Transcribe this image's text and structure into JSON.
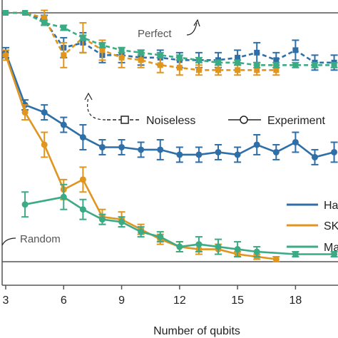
{
  "chart_data": {
    "type": "line",
    "xlabel": "Number of qubits",
    "ylabel": "",
    "xlim": [
      3,
      20.2
    ],
    "ylim": [
      0.0,
      1.0
    ],
    "xticks": [
      3,
      6,
      9,
      12,
      15,
      18
    ],
    "tick_labels": [
      "3",
      "6",
      "9",
      "12",
      "15",
      "18"
    ],
    "reference_lines": [
      {
        "label": "Perfect",
        "y": 1.0
      },
      {
        "label": "Random",
        "y": 0.0
      }
    ],
    "style_legend": [
      {
        "label": "Noiseless",
        "style": "dashed, square markers"
      },
      {
        "label": "Experiment",
        "style": "solid, circle markers"
      }
    ],
    "series_legend": [
      "Ha",
      "SK",
      "Ma"
    ],
    "colors": {
      "Ha": "#2f6fa8",
      "SK": "#e0951f",
      "Ma": "#3bab86",
      "axis": "#555555"
    },
    "series": [
      {
        "name": "Ha",
        "kind": "Experiment",
        "x": [
          3,
          4,
          5,
          6,
          7,
          8,
          9,
          10,
          11,
          12,
          13,
          14,
          15,
          16,
          17,
          18,
          19,
          20
        ],
        "y": [
          0.84,
          0.63,
          0.6,
          0.55,
          0.5,
          0.46,
          0.46,
          0.45,
          0.45,
          0.43,
          0.43,
          0.44,
          0.43,
          0.47,
          0.44,
          0.48,
          0.42,
          0.44
        ],
        "err": [
          0.02,
          0.02,
          0.03,
          0.03,
          0.05,
          0.03,
          0.03,
          0.03,
          0.04,
          0.03,
          0.03,
          0.03,
          0.03,
          0.04,
          0.03,
          0.04,
          0.03,
          0.04
        ]
      },
      {
        "name": "SK",
        "kind": "Experiment",
        "x": [
          3,
          4,
          5,
          6,
          7,
          8,
          9,
          10,
          11,
          12,
          13,
          14,
          15,
          16,
          17
        ],
        "y": [
          0.83,
          0.6,
          0.47,
          0.29,
          0.33,
          0.18,
          0.17,
          0.13,
          0.09,
          0.06,
          0.05,
          0.05,
          0.03,
          0.02,
          0.01
        ],
        "err": [
          0.02,
          0.03,
          0.05,
          0.04,
          0.05,
          0.03,
          0.03,
          0.02,
          0.02,
          0.02,
          0.02,
          0.02,
          0.01,
          0.01,
          0.01
        ]
      },
      {
        "name": "Ma",
        "kind": "Experiment",
        "x": [
          4,
          6,
          7,
          8,
          9,
          10,
          11,
          12,
          13,
          14,
          15,
          16,
          18,
          20
        ],
        "y": [
          0.23,
          0.26,
          0.21,
          0.17,
          0.16,
          0.12,
          0.1,
          0.06,
          0.07,
          0.06,
          0.05,
          0.04,
          0.03,
          0.03
        ],
        "err": [
          0.05,
          0.05,
          0.04,
          0.02,
          0.02,
          0.02,
          0.02,
          0.02,
          0.03,
          0.03,
          0.03,
          0.02,
          0.01,
          0.01
        ]
      },
      {
        "name": "Ha",
        "kind": "Noiseless",
        "x": [
          3,
          4,
          5,
          6,
          7,
          8,
          9,
          10,
          11,
          12,
          13,
          14,
          15,
          16,
          17,
          18,
          19,
          20
        ],
        "y": [
          1.0,
          1.0,
          0.97,
          0.86,
          0.88,
          0.83,
          0.83,
          0.82,
          0.82,
          0.81,
          0.81,
          0.81,
          0.82,
          0.84,
          0.81,
          0.85,
          0.8,
          0.8
        ],
        "err": [
          0.0,
          0.0,
          0.02,
          0.04,
          0.04,
          0.03,
          0.03,
          0.03,
          0.03,
          0.03,
          0.03,
          0.03,
          0.03,
          0.04,
          0.03,
          0.04,
          0.03,
          0.03
        ]
      },
      {
        "name": "SK",
        "kind": "Noiseless",
        "x": [
          3,
          4,
          5,
          6,
          7,
          8,
          9,
          10,
          11,
          12,
          13,
          14,
          15,
          16,
          17
        ],
        "y": [
          1.0,
          1.0,
          0.98,
          0.83,
          0.9,
          0.85,
          0.82,
          0.81,
          0.79,
          0.78,
          0.77,
          0.77,
          0.77,
          0.77,
          0.77
        ],
        "err": [
          0.0,
          0.0,
          0.03,
          0.05,
          0.06,
          0.04,
          0.04,
          0.03,
          0.03,
          0.03,
          0.02,
          0.02,
          0.02,
          0.02,
          0.02
        ]
      },
      {
        "name": "Ma",
        "kind": "Noiseless",
        "x": [
          3,
          4,
          5,
          6,
          7,
          8,
          9,
          10,
          11,
          12,
          13,
          14,
          15,
          16,
          17,
          18,
          19,
          20
        ],
        "y": [
          1.0,
          1.0,
          0.96,
          0.94,
          0.9,
          0.87,
          0.85,
          0.84,
          0.83,
          0.82,
          0.81,
          0.8,
          0.8,
          0.79,
          0.79,
          0.79,
          0.79,
          0.79
        ],
        "err": [
          0.0,
          0.0,
          0.01,
          0.01,
          0.01,
          0.01,
          0.01,
          0.01,
          0.01,
          0.01,
          0.01,
          0.01,
          0.01,
          0.01,
          0.01,
          0.01,
          0.01,
          0.01
        ]
      }
    ]
  }
}
